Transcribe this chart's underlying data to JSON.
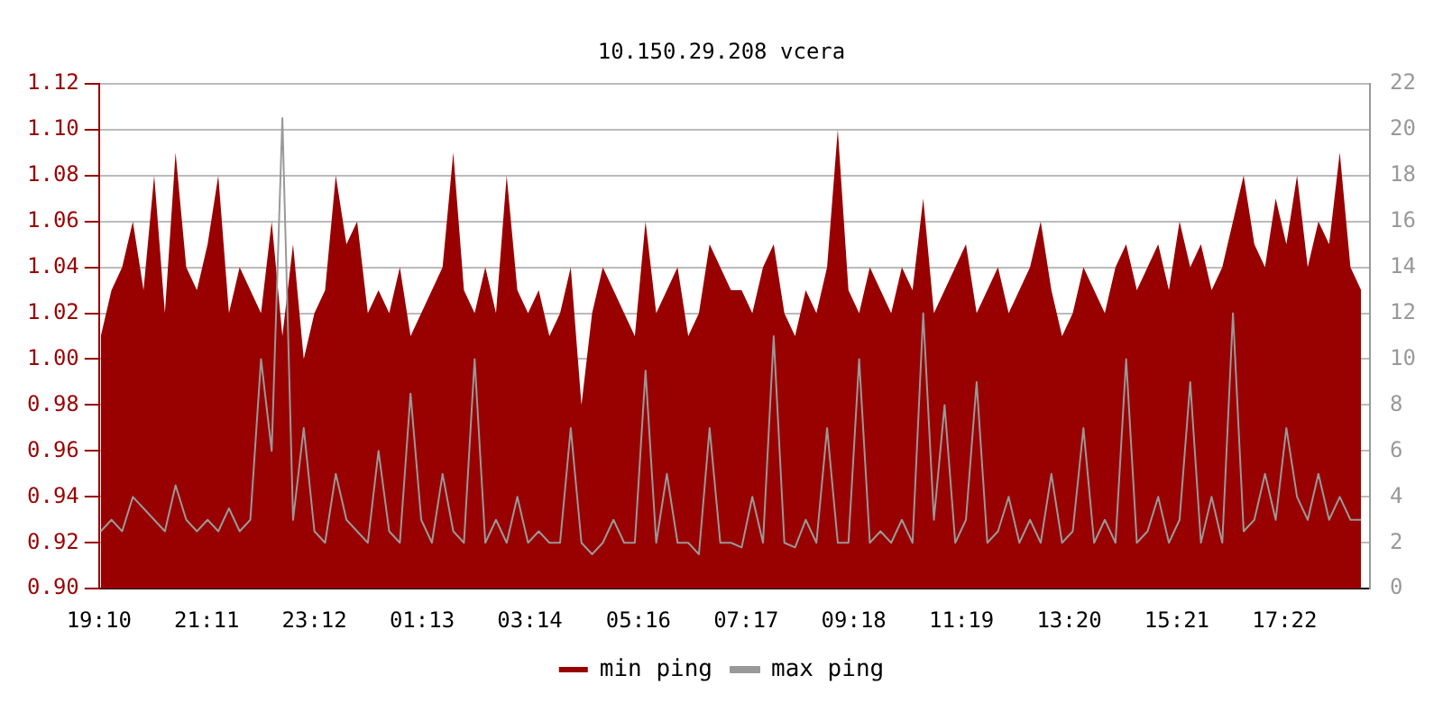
{
  "chart_data": {
    "type": "area",
    "title": "10.150.29.208 vcera",
    "x": [
      "--01-01T19:12",
      "--01-01T19:24",
      "--01-01T19:36",
      "--01-01T19:48",
      "--01-01T20:00",
      "--01-01T20:12",
      "--01-01T20:24",
      "--01-01T20:36",
      "--01-01T20:48",
      "--01-01T21:00",
      "--01-01T21:12",
      "--01-01T21:24",
      "--01-01T21:36",
      "--01-01T21:48",
      "--01-01T22:00",
      "--01-01T22:12",
      "--01-01T22:24",
      "--01-01T22:36",
      "--01-01T22:48",
      "--01-01T23:00",
      "--01-01T23:12",
      "--01-01T23:24",
      "--01-01T23:36",
      "--01-01T23:48",
      "--01-02T00:00",
      "--01-02T00:12",
      "--01-02T00:24",
      "--01-02T00:36",
      "--01-02T00:48",
      "--01-02T01:00",
      "--01-02T01:12",
      "--01-02T01:24",
      "--01-02T01:36",
      "--01-02T01:48",
      "--01-02T02:00",
      "--01-02T02:12",
      "--01-02T02:24",
      "--01-02T02:36",
      "--01-02T02:48",
      "--01-02T03:00",
      "--01-02T03:12",
      "--01-02T03:24",
      "--01-02T03:36",
      "--01-02T03:48",
      "--01-02T04:00",
      "--01-02T04:12",
      "--01-02T04:24",
      "--01-02T04:36",
      "--01-02T04:48",
      "--01-02T05:00",
      "--01-02T05:12",
      "--01-02T05:24",
      "--01-02T05:36",
      "--01-02T05:48",
      "--01-02T06:00",
      "--01-02T06:12",
      "--01-02T06:24",
      "--01-02T06:36",
      "--01-02T06:48",
      "--01-02T07:00",
      "--01-02T07:12",
      "--01-02T07:24",
      "--01-02T07:36",
      "--01-02T07:48",
      "--01-02T08:00",
      "--01-02T08:12",
      "--01-02T08:24",
      "--01-02T08:36",
      "--01-02T08:48",
      "--01-02T09:00",
      "--01-02T09:12",
      "--01-02T09:24",
      "--01-02T09:36",
      "--01-02T09:48",
      "--01-02T10:00",
      "--01-02T10:12",
      "--01-02T10:24",
      "--01-02T10:36",
      "--01-02T10:48",
      "--01-02T11:00",
      "--01-02T11:12",
      "--01-02T11:24",
      "--01-02T11:36",
      "--01-02T11:48",
      "--01-02T12:00",
      "--01-02T12:12",
      "--01-02T12:24",
      "--01-02T12:36",
      "--01-02T12:48",
      "--01-02T13:00",
      "--01-02T13:12",
      "--01-02T13:24",
      "--01-02T13:36",
      "--01-02T13:48",
      "--01-02T14:00",
      "--01-02T14:12",
      "--01-02T14:24",
      "--01-02T14:36",
      "--01-02T14:48",
      "--01-02T15:00",
      "--01-02T15:12",
      "--01-02T15:24",
      "--01-02T15:36",
      "--01-02T15:48",
      "--01-02T16:00",
      "--01-02T16:12",
      "--01-02T16:24",
      "--01-02T16:36",
      "--01-02T16:48",
      "--01-02T17:00",
      "--01-02T17:12",
      "--01-02T17:24",
      "--01-02T17:36",
      "--01-02T17:48",
      "--01-02T18:00",
      "--01-02T18:12",
      "--01-02T18:24",
      "--01-02T18:36",
      "--01-02T18:48"
    ],
    "series": [
      {
        "name": "min ping",
        "color": "#990000",
        "values": [
          1.01,
          1.03,
          1.04,
          1.06,
          1.03,
          1.08,
          1.02,
          1.09,
          1.04,
          1.03,
          1.05,
          1.08,
          1.02,
          1.04,
          1.03,
          1.02,
          1.06,
          1.01,
          1.05,
          1.0,
          1.02,
          1.03,
          1.08,
          1.05,
          1.06,
          1.02,
          1.03,
          1.02,
          1.04,
          1.01,
          1.02,
          1.03,
          1.04,
          1.09,
          1.03,
          1.02,
          1.04,
          1.02,
          1.08,
          1.03,
          1.02,
          1.03,
          1.01,
          1.02,
          1.04,
          0.98,
          1.02,
          1.04,
          1.03,
          1.02,
          1.01,
          1.06,
          1.02,
          1.03,
          1.04,
          1.01,
          1.02,
          1.05,
          1.04,
          1.03,
          1.03,
          1.02,
          1.04,
          1.05,
          1.02,
          1.01,
          1.03,
          1.02,
          1.04,
          1.1,
          1.03,
          1.02,
          1.04,
          1.03,
          1.02,
          1.04,
          1.03,
          1.07,
          1.02,
          1.03,
          1.04,
          1.05,
          1.02,
          1.03,
          1.04,
          1.02,
          1.03,
          1.04,
          1.06,
          1.03,
          1.01,
          1.02,
          1.04,
          1.03,
          1.02,
          1.04,
          1.05,
          1.03,
          1.04,
          1.05,
          1.03,
          1.06,
          1.04,
          1.05,
          1.03,
          1.04,
          1.06,
          1.08,
          1.05,
          1.04,
          1.07,
          1.05,
          1.08,
          1.04,
          1.06,
          1.05,
          1.09,
          1.04,
          1.03
        ]
      },
      {
        "name": "max ping",
        "type": "line",
        "axis": "y2",
        "color": "#999999",
        "values": [
          2.5,
          3,
          2.5,
          4,
          3.5,
          3,
          2.5,
          4.5,
          3,
          2.5,
          3,
          2.5,
          3.5,
          2.5,
          3,
          10,
          6,
          20.5,
          3,
          7,
          2.5,
          2,
          5,
          3,
          2.5,
          2,
          6,
          2.5,
          2,
          8.5,
          3,
          2,
          5,
          2.5,
          2,
          10,
          2,
          3,
          2,
          4,
          2,
          2.5,
          2,
          2,
          7,
          2,
          1.5,
          2,
          3,
          2,
          2,
          9.5,
          2,
          5,
          2,
          2,
          1.5,
          7,
          2,
          2,
          1.8,
          4,
          2,
          11,
          2,
          1.8,
          3,
          2,
          7,
          2,
          2,
          10,
          2,
          2.5,
          2,
          3,
          2,
          12,
          3,
          8,
          2,
          3,
          9,
          2,
          2.5,
          4,
          2,
          3,
          2,
          5,
          2,
          2.5,
          7,
          2,
          3,
          2,
          10,
          2,
          2.5,
          4,
          2,
          3,
          9,
          2,
          4,
          2,
          12,
          2.5,
          3,
          5,
          3,
          7,
          4,
          3,
          5,
          3,
          4,
          3,
          3
        ]
      }
    ],
    "xlim": [
      "--01-01T19:10",
      "--01-02T18:58"
    ],
    "xticks": [
      {
        "value": "--01-01T19:10",
        "label": "19:10"
      },
      {
        "value": "--01-01T21:11",
        "label": "21:11"
      },
      {
        "value": "--01-01T23:12",
        "label": "23:12"
      },
      {
        "value": "--01-02T01:13",
        "label": "01:13"
      },
      {
        "value": "--01-02T03:14",
        "label": "03:14"
      },
      {
        "value": "--01-02T05:16",
        "label": "05:16"
      },
      {
        "value": "--01-02T07:17",
        "label": "07:17"
      },
      {
        "value": "--01-02T09:18",
        "label": "09:18"
      },
      {
        "value": "--01-02T11:19",
        "label": "11:19"
      },
      {
        "value": "--01-02T13:20",
        "label": "13:20"
      },
      {
        "value": "--01-02T15:21",
        "label": "15:21"
      },
      {
        "value": "--01-02T17:22",
        "label": "17:22"
      }
    ],
    "ylim": [
      0.9,
      1.12
    ],
    "yticks": [
      {
        "value": 0.9,
        "label": "0.90"
      },
      {
        "value": 0.92,
        "label": "0.92"
      },
      {
        "value": 0.94,
        "label": "0.94"
      },
      {
        "value": 0.96,
        "label": "0.96"
      },
      {
        "value": 0.98,
        "label": "0.98"
      },
      {
        "value": 1.0,
        "label": "1.00"
      },
      {
        "value": 1.02,
        "label": "1.02"
      },
      {
        "value": 1.04,
        "label": "1.04"
      },
      {
        "value": 1.06,
        "label": "1.06"
      },
      {
        "value": 1.08,
        "label": "1.08"
      },
      {
        "value": 1.1,
        "label": "1.10"
      },
      {
        "value": 1.12,
        "label": "1.12"
      }
    ],
    "y2lim": [
      0,
      22
    ],
    "y2ticks": [
      0,
      2,
      4,
      6,
      8,
      10,
      12,
      14,
      16,
      18,
      20,
      22
    ],
    "grid": "y",
    "legend": "bottom"
  }
}
